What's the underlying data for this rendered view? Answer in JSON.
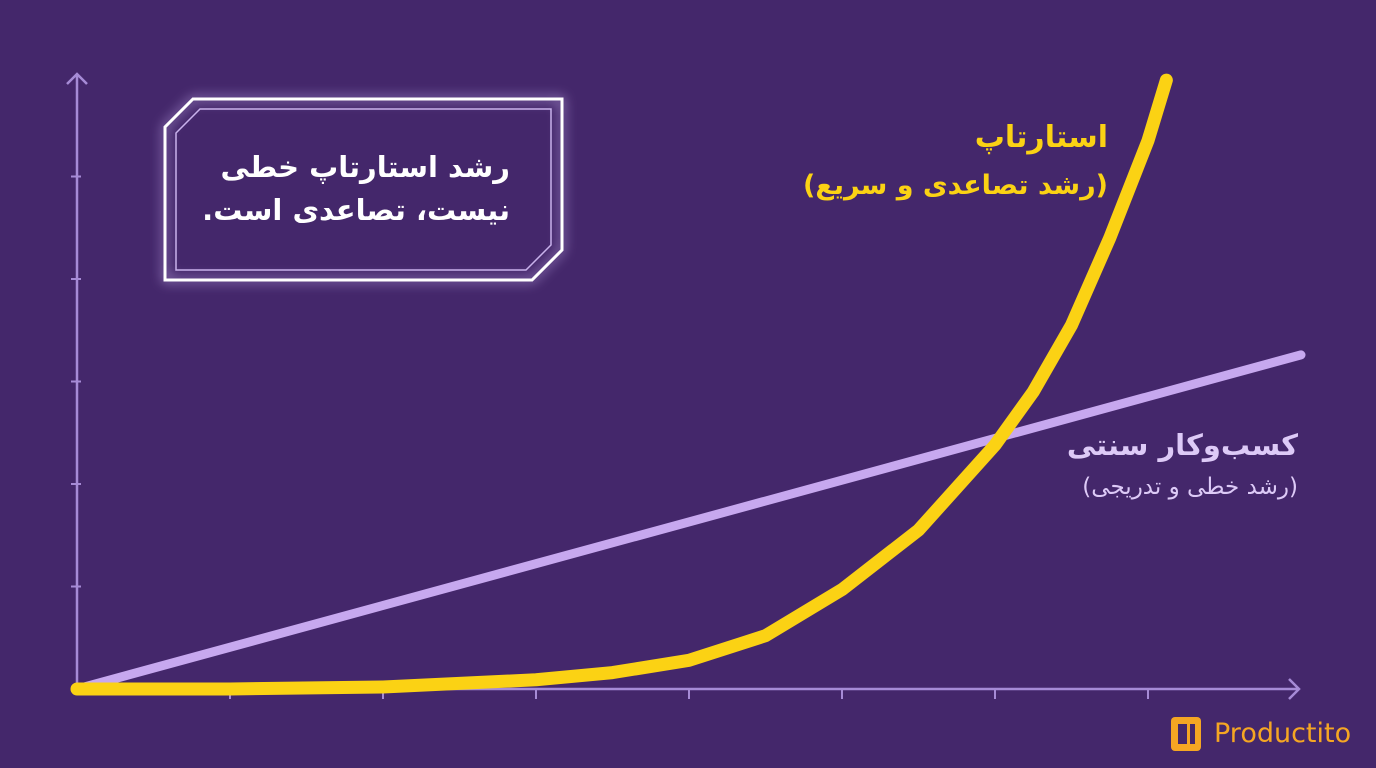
{
  "chart_data": {
    "type": "line",
    "annotations": [
      "رشد استارتاپ خطی",
      "نیست، تصاعدی است."
    ],
    "xlim": [
      0,
      8
    ],
    "ylim": [
      0,
      6
    ],
    "xticks": [
      1,
      2,
      3,
      4,
      5,
      6,
      7
    ],
    "yticks": [
      1,
      2,
      3,
      4,
      5
    ],
    "series": [
      {
        "name": "کسب‌وکار سنتی",
        "subtitle": "(رشد خطی و تدریجی)",
        "color": "#c7a8ef",
        "x": [
          0,
          8
        ],
        "values": [
          0,
          3.26
        ]
      },
      {
        "name": "استارتاپ",
        "subtitle": "(رشد تصاعدی و سریع)",
        "color": "#fbd214",
        "x": [
          0,
          1,
          2,
          3,
          3.5,
          4,
          4.5,
          5,
          5.5,
          6,
          6.25,
          6.5,
          6.75,
          7,
          7.12
        ],
        "values": [
          0,
          0,
          0.02,
          0.09,
          0.16,
          0.28,
          0.52,
          0.97,
          1.55,
          2.38,
          2.9,
          3.55,
          4.4,
          5.35,
          5.94
        ]
      }
    ]
  },
  "logo": "Productito"
}
